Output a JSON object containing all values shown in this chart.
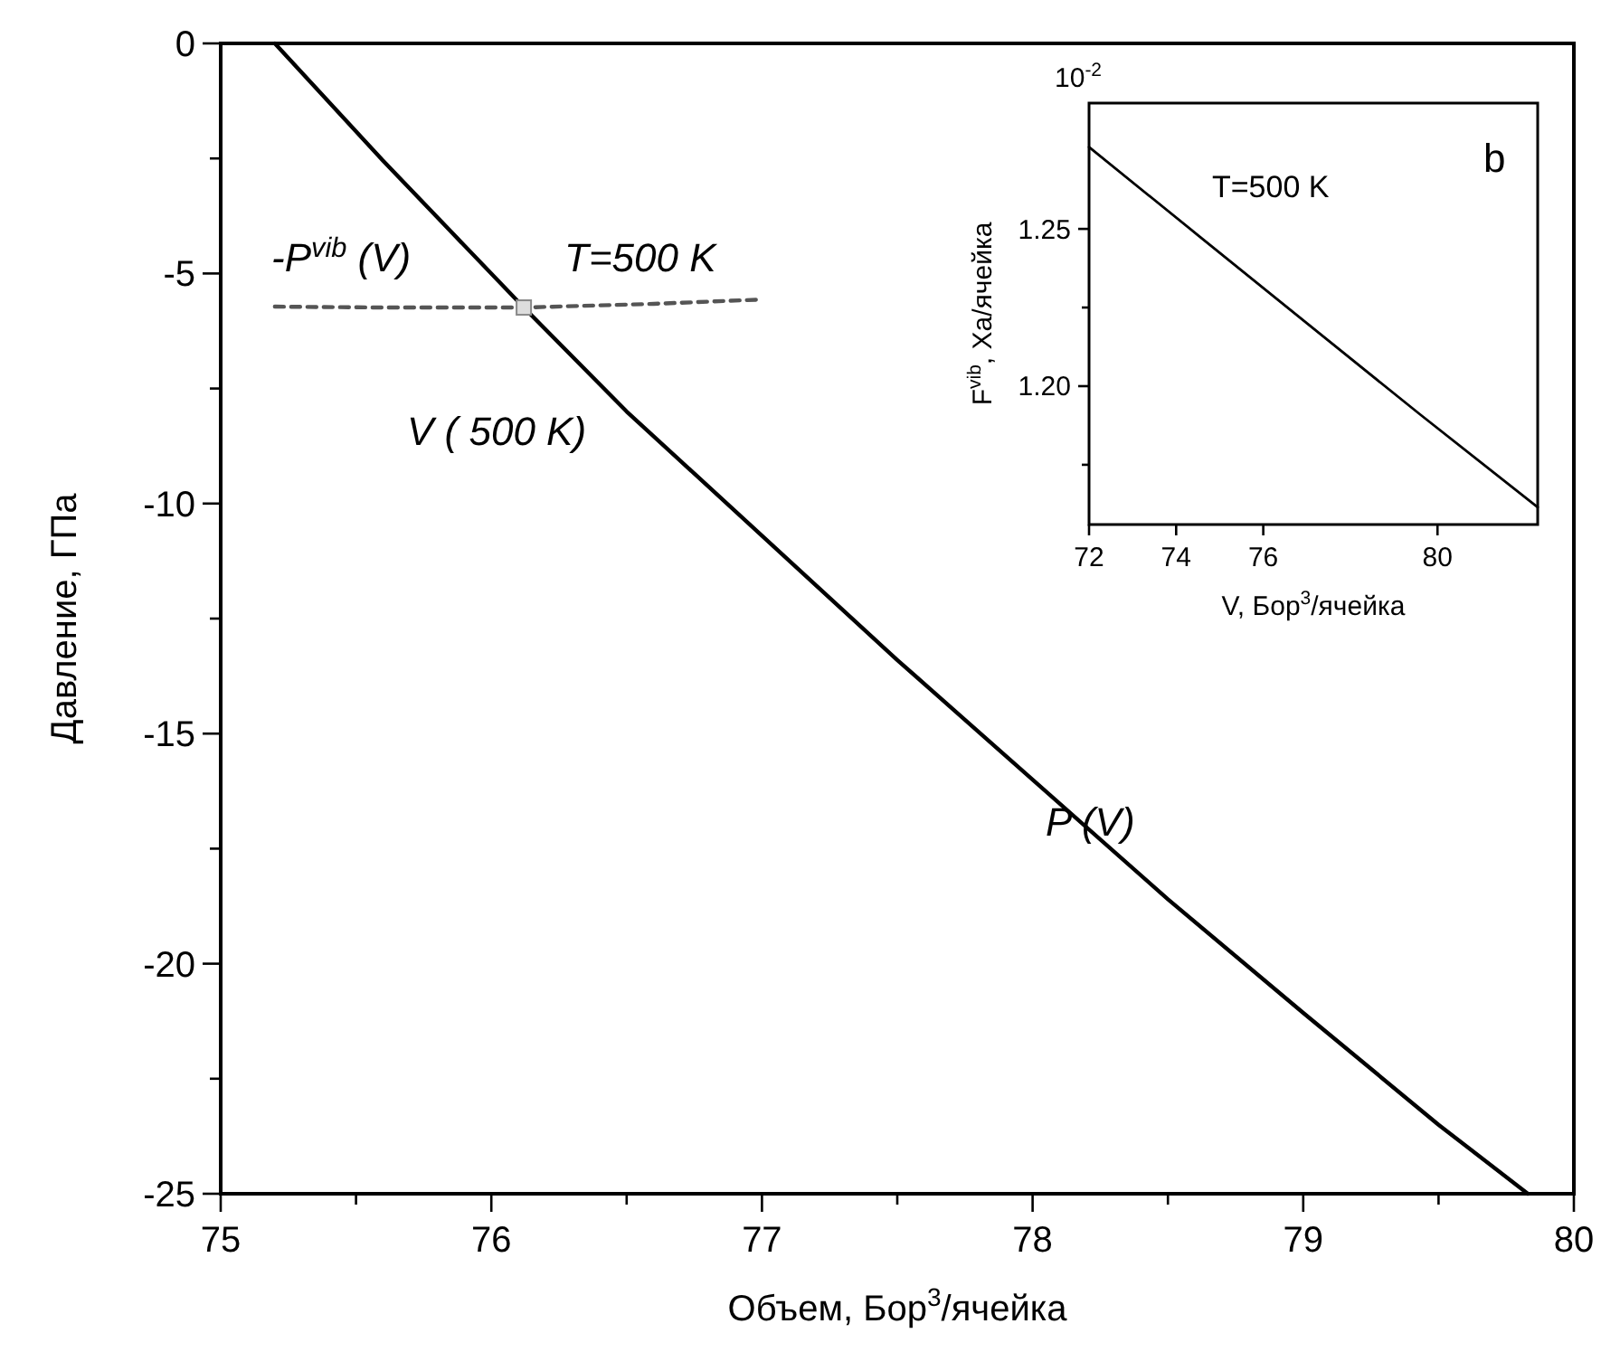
{
  "chart_data": [
    {
      "type": "line",
      "xlabel": "Объем, Бор$^{3}$/ячейка",
      "ylabel": "Давление, ГПа",
      "xlim": [
        75,
        80
      ],
      "ylim": [
        -25,
        0
      ],
      "xticks": [
        75,
        {
          "value": 75.5,
          "label": null
        },
        76,
        {
          "value": 76.5,
          "label": null
        },
        77,
        {
          "value": 77.5,
          "label": null
        },
        78,
        {
          "value": 78.5,
          "label": null
        },
        79,
        {
          "value": 79.5,
          "label": null
        },
        80
      ],
      "yticks": [
        0,
        {
          "value": -2.5,
          "label": null
        },
        -5,
        {
          "value": -7.5,
          "label": null
        },
        -10,
        {
          "value": -12.5,
          "label": null
        },
        -15,
        {
          "value": -17.5,
          "label": null
        },
        -20,
        {
          "value": -22.5,
          "label": null
        },
        -25
      ],
      "grid": false,
      "series": [
        {
          "color": "#000000",
          "line_style": "solid",
          "marker": "none",
          "x": [
            75.2,
            75.6,
            76.12,
            76.5,
            77,
            77.5,
            78,
            78.5,
            79,
            79.5,
            79.83
          ],
          "values": [
            0,
            -2.55,
            -5.74,
            -8.0,
            -10.7,
            -13.4,
            -16.0,
            -18.6,
            -21.07,
            -23.5,
            -25
          ]
        },
        {
          "type": "line",
          "color": "#555555",
          "line_style": "dashed",
          "marker": "none",
          "x": [
            75.2,
            75.6,
            76.12,
            76.6,
            76.98
          ],
          "values": [
            -5.72,
            -5.74,
            -5.74,
            -5.66,
            -5.57
          ]
        },
        {
          "type": "scatter",
          "color": "#888888",
          "marker": "square",
          "x": [
            76.12
          ],
          "values": [
            -5.74
          ]
        }
      ],
      "annotations": [
        "-P$^{vib}$  (V)",
        "T=500 K",
        "V ( 500 K)",
        "P  (V)"
      ]
    },
    {
      "type": "line",
      "xlabel": "V, Бор$^{3}$/ячейка",
      "ylabel": "F$^{vib}$, Ха/ячейка",
      "xlim": [
        72,
        82.3
      ],
      "ylim": [
        1.156,
        1.29
      ],
      "xticks": [
        72,
        74,
        76,
        80
      ],
      "yticks": [
        {
          "value": 1.175,
          "label": null
        },
        {
          "value": 1.2,
          "label": "1.20"
        },
        {
          "value": 1.225,
          "label": null
        },
        1.25
      ],
      "grid": false,
      "series": [
        {
          "color": "#000000",
          "line_style": "solid",
          "marker": "none",
          "x": [
            72,
            74.5,
            77,
            79.6,
            82.3
          ],
          "values": [
            1.276,
            1.248,
            1.22,
            1.191,
            1.1615
          ]
        }
      ],
      "annotations": [
        "T=500 K",
        "b",
        "10$^{-2}$"
      ]
    }
  ]
}
